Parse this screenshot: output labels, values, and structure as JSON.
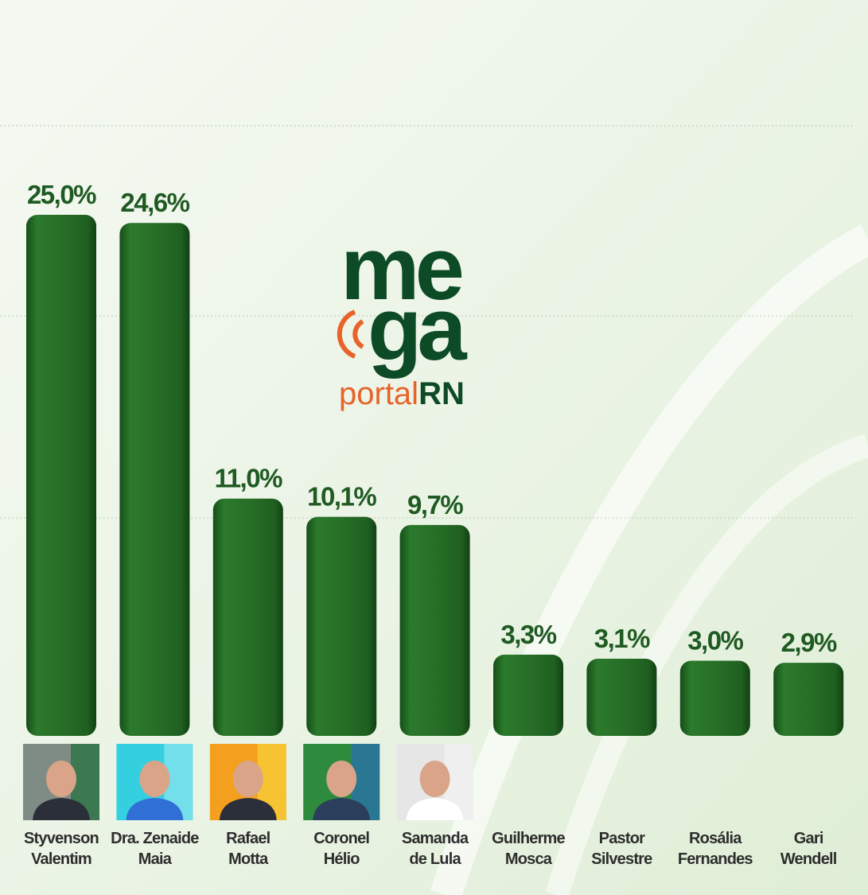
{
  "chart_data": {
    "type": "bar",
    "categories": [
      [
        "Styvenson",
        "Valentim"
      ],
      [
        "Dra. Zenaide",
        "Maia"
      ],
      [
        "Rafael",
        "Motta"
      ],
      [
        "Coronel",
        "Hélio"
      ],
      [
        "Samanda",
        "de Lula"
      ],
      [
        "Guilherme",
        "Mosca"
      ],
      [
        "Pastor",
        "Silvestre"
      ],
      [
        "Rosália",
        "Fernandes"
      ],
      [
        "Gari",
        "Wendell"
      ]
    ],
    "values": [
      25.0,
      24.6,
      11.0,
      10.1,
      9.7,
      3.3,
      3.1,
      3.0,
      2.9
    ],
    "value_labels": [
      "25,0%",
      "24,6%",
      "11,0%",
      "10,1%",
      "9,7%",
      "3,3%",
      "3,1%",
      "3,0%",
      "2,9%"
    ],
    "color": "#236b24"
  },
  "logo": {
    "line1": "me",
    "line2": "ga",
    "portal": "portal",
    "rn": "RN"
  }
}
